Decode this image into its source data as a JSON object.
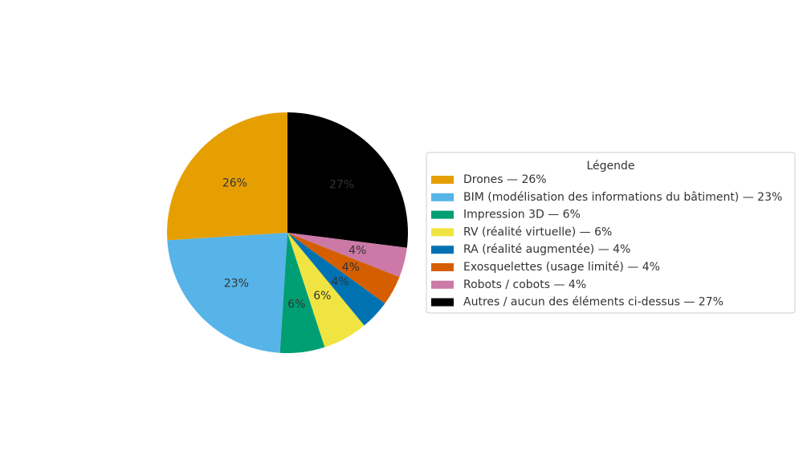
{
  "chart_data": {
    "type": "pie",
    "legend_title": "Légende",
    "legend_position": "right",
    "slices": [
      {
        "label": "Drones",
        "legend_label": "Drones — 26%",
        "value": 26,
        "pct_label": "26%",
        "color": "#E69F00"
      },
      {
        "label": "BIM (modélisation des informations du bâtiment)",
        "legend_label": "BIM (modélisation des informations du bâtiment) — 23%",
        "value": 23,
        "pct_label": "23%",
        "color": "#56B4E9"
      },
      {
        "label": "Impression 3D",
        "legend_label": "Impression 3D — 6%",
        "value": 6,
        "pct_label": "6%",
        "color": "#009E73"
      },
      {
        "label": "RV (réalité virtuelle)",
        "legend_label": "RV (réalité virtuelle) — 6%",
        "value": 6,
        "pct_label": "6%",
        "color": "#F0E442"
      },
      {
        "label": "RA (réalité augmentée)",
        "legend_label": "RA (réalité augmentée) — 4%",
        "value": 4,
        "pct_label": "4%",
        "color": "#0072B2"
      },
      {
        "label": "Exosquelettes (usage limité)",
        "legend_label": "Exosquelettes (usage limité) — 4%",
        "value": 4,
        "pct_label": "4%",
        "color": "#D55E00"
      },
      {
        "label": "Robots / cobots",
        "legend_label": "Robots / cobots — 4%",
        "value": 4,
        "pct_label": "4%",
        "color": "#CC79A7"
      },
      {
        "label": "Autres / aucun des éléments ci-dessus",
        "legend_label": "Autres / aucun des éléments ci-dessus — 27%",
        "value": 27,
        "pct_label": "27%",
        "color": "#000000"
      }
    ]
  }
}
